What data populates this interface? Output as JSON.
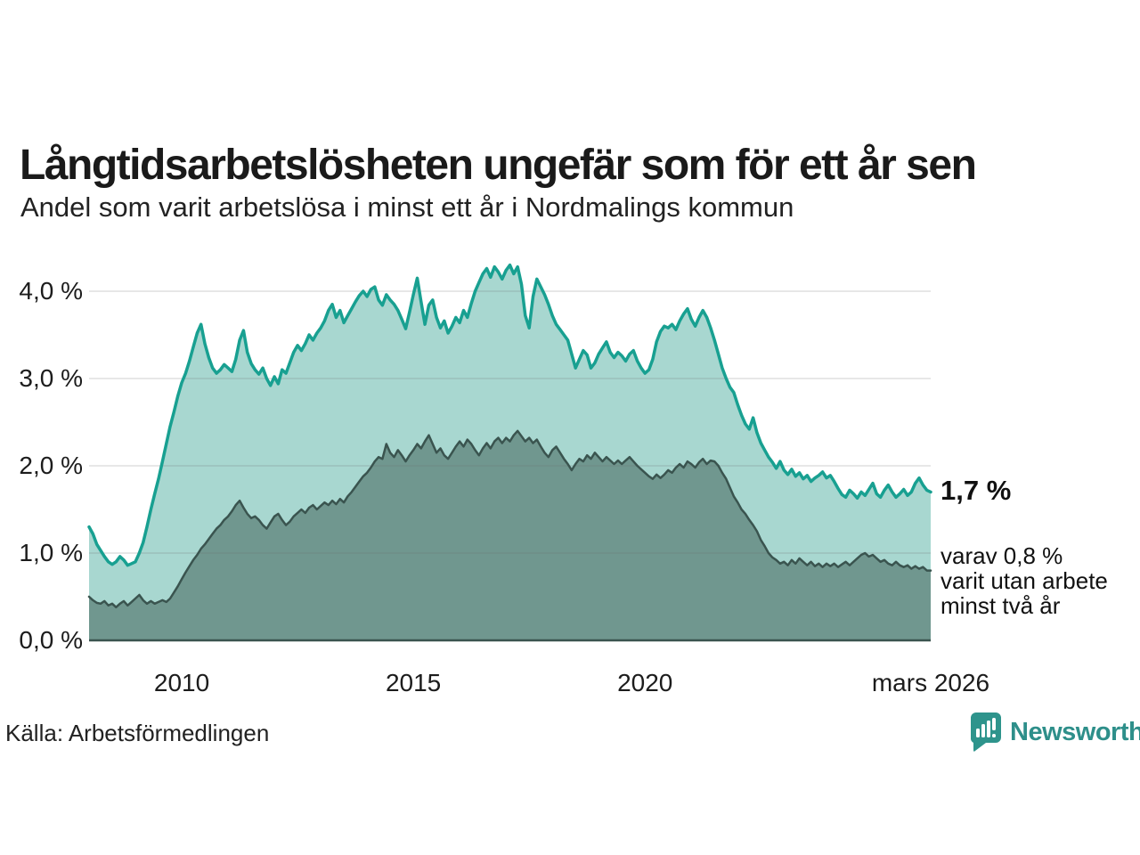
{
  "page": {
    "title": "Långtidsarbetslösheten ungefär som för ett år sen",
    "subtitle": "Andel som varit arbetslösa i minst ett år i Nordmalings kommun",
    "source": "Källa: Arbetsförmedlingen",
    "brand": {
      "name": "Newsworthy",
      "icon": "newsworthy-bubble-barchart-icon",
      "color": "#2E8F8A"
    }
  },
  "annotations": {
    "value_label": "1,7 %",
    "secondary_lines": [
      "varav 0,8 %",
      "varit utan arbete",
      "minst två år"
    ]
  },
  "colors": {
    "teal_line": "#18A091",
    "light_fill": "#A8D7D0",
    "dark_line": "#3A544F",
    "dark_fill": "#70978F",
    "gridline": "rgba(110,110,110,0.22)",
    "axis_line": "#3A544F",
    "text": "#1a1a1a"
  },
  "chart_data": {
    "type": "area",
    "title": "Långtidsarbetslösheten ungefär som för ett år sen",
    "subtitle": "Andel som varit arbetslösa i minst ett år i Nordmalings kommun",
    "x_unit": "month",
    "x_start": "2008-01",
    "x_end": "2026-03",
    "x_domain_years": [
      2008.0,
      2026.1667
    ],
    "ylim": [
      0,
      4.4
    ],
    "grid": true,
    "legend": "none",
    "yticks": [
      {
        "value": 4.0,
        "label": "4,0 %"
      },
      {
        "value": 3.0,
        "label": "3,0 %"
      },
      {
        "value": 2.0,
        "label": "2,0 %"
      },
      {
        "value": 1.0,
        "label": "1,0 %"
      },
      {
        "value": 0.0,
        "label": "0,0 %"
      }
    ],
    "xticks": [
      {
        "year": 2010,
        "label": "2010"
      },
      {
        "year": 2015,
        "label": "2015"
      },
      {
        "year": 2020,
        "label": "2020"
      },
      {
        "year": 2026.1667,
        "label": "mars 2026"
      }
    ],
    "series": [
      {
        "name": "Arbetslösa minst ett år",
        "end_value_pct": 1.7,
        "line_color": "#18A091",
        "fill_color": "#A8D7D0",
        "stroke_width": 3.5,
        "values": [
          1.3,
          1.22,
          1.1,
          1.03,
          0.96,
          0.9,
          0.87,
          0.9,
          0.96,
          0.92,
          0.86,
          0.88,
          0.9,
          1.0,
          1.12,
          1.3,
          1.5,
          1.68,
          1.85,
          2.05,
          2.25,
          2.45,
          2.62,
          2.8,
          2.95,
          3.06,
          3.2,
          3.36,
          3.52,
          3.62,
          3.4,
          3.24,
          3.12,
          3.06,
          3.1,
          3.16,
          3.12,
          3.08,
          3.22,
          3.44,
          3.55,
          3.3,
          3.17,
          3.1,
          3.05,
          3.12,
          3.0,
          2.92,
          3.02,
          2.94,
          3.1,
          3.06,
          3.18,
          3.3,
          3.38,
          3.32,
          3.4,
          3.5,
          3.44,
          3.52,
          3.58,
          3.66,
          3.78,
          3.85,
          3.7,
          3.78,
          3.64,
          3.72,
          3.8,
          3.88,
          3.95,
          4.0,
          3.94,
          4.02,
          4.05,
          3.9,
          3.84,
          3.96,
          3.9,
          3.85,
          3.78,
          3.68,
          3.57,
          3.76,
          3.96,
          4.15,
          3.88,
          3.62,
          3.84,
          3.9,
          3.7,
          3.58,
          3.66,
          3.52,
          3.6,
          3.7,
          3.64,
          3.78,
          3.7,
          3.86,
          4.0,
          4.1,
          4.2,
          4.26,
          4.16,
          4.28,
          4.22,
          4.14,
          4.24,
          4.3,
          4.2,
          4.28,
          4.08,
          3.72,
          3.58,
          3.94,
          4.14,
          4.05,
          3.96,
          3.85,
          3.72,
          3.62,
          3.56,
          3.5,
          3.44,
          3.28,
          3.12,
          3.22,
          3.32,
          3.27,
          3.12,
          3.18,
          3.28,
          3.35,
          3.42,
          3.3,
          3.24,
          3.3,
          3.26,
          3.2,
          3.28,
          3.32,
          3.2,
          3.12,
          3.06,
          3.1,
          3.22,
          3.42,
          3.54,
          3.6,
          3.58,
          3.62,
          3.56,
          3.66,
          3.74,
          3.8,
          3.68,
          3.6,
          3.7,
          3.78,
          3.7,
          3.58,
          3.44,
          3.28,
          3.12,
          3.0,
          2.9,
          2.84,
          2.7,
          2.58,
          2.48,
          2.42,
          2.55,
          2.38,
          2.26,
          2.18,
          2.1,
          2.04,
          1.97,
          2.05,
          1.95,
          1.9,
          1.96,
          1.88,
          1.92,
          1.85,
          1.89,
          1.82,
          1.86,
          1.89,
          1.93,
          1.86,
          1.89,
          1.82,
          1.74,
          1.67,
          1.64,
          1.72,
          1.68,
          1.63,
          1.7,
          1.66,
          1.73,
          1.8,
          1.68,
          1.64,
          1.72,
          1.78,
          1.7,
          1.64,
          1.68,
          1.73,
          1.66,
          1.7,
          1.8,
          1.86,
          1.78,
          1.72,
          1.7
        ]
      },
      {
        "name": "Varav utan arbete minst två år",
        "end_value_pct": 0.8,
        "line_color": "#3A544F",
        "fill_color": "#70978F",
        "stroke_width": 2.5,
        "values": [
          0.5,
          0.46,
          0.43,
          0.42,
          0.45,
          0.4,
          0.42,
          0.38,
          0.42,
          0.45,
          0.4,
          0.44,
          0.48,
          0.52,
          0.46,
          0.42,
          0.45,
          0.42,
          0.44,
          0.46,
          0.44,
          0.48,
          0.55,
          0.62,
          0.7,
          0.78,
          0.85,
          0.92,
          0.98,
          1.05,
          1.1,
          1.16,
          1.22,
          1.28,
          1.32,
          1.38,
          1.42,
          1.48,
          1.55,
          1.6,
          1.52,
          1.45,
          1.4,
          1.42,
          1.38,
          1.32,
          1.28,
          1.35,
          1.42,
          1.45,
          1.38,
          1.32,
          1.36,
          1.42,
          1.46,
          1.5,
          1.46,
          1.52,
          1.55,
          1.5,
          1.54,
          1.58,
          1.55,
          1.6,
          1.56,
          1.62,
          1.58,
          1.65,
          1.7,
          1.76,
          1.82,
          1.88,
          1.92,
          1.98,
          2.05,
          2.1,
          2.08,
          2.25,
          2.15,
          2.1,
          2.18,
          2.12,
          2.05,
          2.12,
          2.18,
          2.25,
          2.2,
          2.28,
          2.35,
          2.25,
          2.15,
          2.2,
          2.12,
          2.08,
          2.15,
          2.22,
          2.28,
          2.22,
          2.3,
          2.25,
          2.18,
          2.12,
          2.2,
          2.26,
          2.2,
          2.28,
          2.32,
          2.26,
          2.32,
          2.28,
          2.35,
          2.4,
          2.34,
          2.28,
          2.32,
          2.26,
          2.3,
          2.22,
          2.15,
          2.1,
          2.18,
          2.22,
          2.15,
          2.08,
          2.02,
          1.95,
          2.02,
          2.08,
          2.05,
          2.12,
          2.08,
          2.15,
          2.1,
          2.05,
          2.1,
          2.06,
          2.02,
          2.06,
          2.02,
          2.06,
          2.1,
          2.05,
          2.0,
          1.96,
          1.92,
          1.88,
          1.85,
          1.9,
          1.86,
          1.9,
          1.95,
          1.92,
          1.98,
          2.02,
          1.98,
          2.05,
          2.02,
          1.98,
          2.04,
          2.08,
          2.02,
          2.06,
          2.05,
          2.0,
          1.92,
          1.85,
          1.75,
          1.65,
          1.58,
          1.5,
          1.45,
          1.38,
          1.32,
          1.25,
          1.15,
          1.08,
          1.0,
          0.95,
          0.92,
          0.88,
          0.9,
          0.86,
          0.92,
          0.88,
          0.94,
          0.9,
          0.86,
          0.9,
          0.85,
          0.88,
          0.84,
          0.88,
          0.85,
          0.88,
          0.84,
          0.87,
          0.9,
          0.86,
          0.9,
          0.94,
          0.98,
          1.0,
          0.96,
          0.98,
          0.94,
          0.9,
          0.92,
          0.88,
          0.86,
          0.9,
          0.86,
          0.84,
          0.86,
          0.82,
          0.85,
          0.82,
          0.84,
          0.8,
          0.8
        ]
      }
    ]
  }
}
